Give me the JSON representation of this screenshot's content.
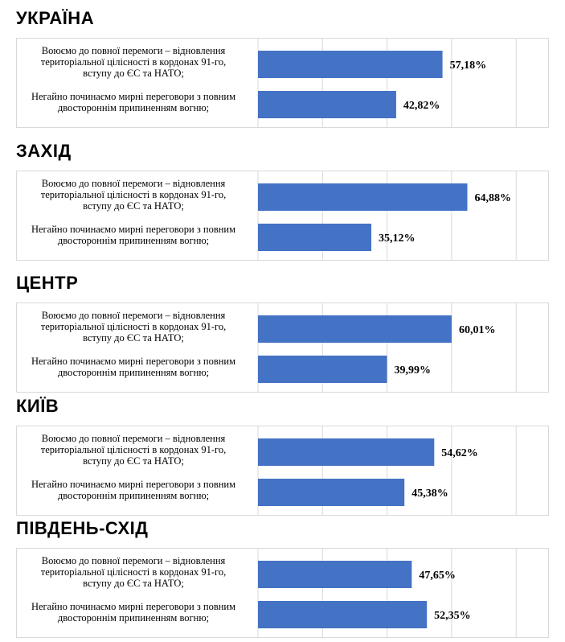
{
  "colors": {
    "bar": "#4472c4",
    "grid": "#d9d9d9",
    "border": "#d9d9d9"
  },
  "chart_data": [
    {
      "type": "bar",
      "orientation": "horizontal",
      "title": "УКРАЇНА",
      "categories": [
        "Воюємо до повної перемоги – відновлення територіальної цілісності в кордонах 91-го, вступу до ЄС та НАТО;",
        "Негайно починаємо мирні переговори з повним двостороннім припиненням вогню;"
      ],
      "category_lines": [
        [
          "Воюємо до повної перемоги – відновлення",
          "територіальної цілісності в кордонах 91-го,",
          "вступу до ЄС та НАТО;"
        ],
        [
          "Негайно починаємо мирні переговори з повним",
          "двостороннім припиненням вогню;"
        ]
      ],
      "values": [
        57.18,
        42.82
      ],
      "data_labels": [
        "57,18%",
        "42,82%"
      ],
      "xlim": [
        0,
        80
      ]
    },
    {
      "type": "bar",
      "orientation": "horizontal",
      "title": "ЗАХІД",
      "categories": [
        "Воюємо до повної перемоги – відновлення територіальної цілісності в кордонах 91-го, вступу до ЄС та НАТО;",
        "Негайно починаємо мирні переговори з повним двостороннім припиненням вогню;"
      ],
      "category_lines": [
        [
          "Воюємо до повної перемоги – відновлення",
          "територіальної цілісності в кордонах 91-го,",
          "вступу до ЄС та НАТО;"
        ],
        [
          "Негайно починаємо мирні переговори з повним",
          "двостороннім припиненням вогню;"
        ]
      ],
      "values": [
        64.88,
        35.12
      ],
      "data_labels": [
        "64,88%",
        "35,12%"
      ],
      "xlim": [
        0,
        80
      ]
    },
    {
      "type": "bar",
      "orientation": "horizontal",
      "title": "ЦЕНТР",
      "categories": [
        "Воюємо до повної перемоги – відновлення територіальної цілісності в кордонах 91-го, вступу до ЄС та НАТО;",
        "Негайно починаємо мирні переговори з повним двостороннім припиненням вогню;"
      ],
      "category_lines": [
        [
          "Воюємо до повної перемоги – відновлення",
          "територіальної цілісності в кордонах 91-го,",
          "вступу до ЄС та НАТО;"
        ],
        [
          "Негайно починаємо мирні переговори з повним",
          "двостороннім припиненням вогню;"
        ]
      ],
      "values": [
        60.01,
        39.99
      ],
      "data_labels": [
        "60,01%",
        "39,99%"
      ],
      "xlim": [
        0,
        80
      ]
    },
    {
      "type": "bar",
      "orientation": "horizontal",
      "title": "КИЇВ",
      "categories": [
        "Воюємо до повної перемоги – відновлення територіальної цілісності в кордонах 91-го, вступу до ЄС та НАТО;",
        "Негайно починаємо мирні переговори з повним двостороннім припиненням вогню;"
      ],
      "category_lines": [
        [
          "Воюємо до повної перемоги – відновлення",
          "територіальної цілісності в кордонах 91-го,",
          "вступу до ЄС та НАТО;"
        ],
        [
          "Негайно починаємо мирні переговори з повним",
          "двостороннім припиненням вогню;"
        ]
      ],
      "values": [
        54.62,
        45.38
      ],
      "data_labels": [
        "54,62%",
        "45,38%"
      ],
      "xlim": [
        0,
        80
      ]
    },
    {
      "type": "bar",
      "orientation": "horizontal",
      "title": "ПІВДЕНЬ-СХІД",
      "categories": [
        "Воюємо до повної перемоги – відновлення територіальної цілісності в кордонах 91-го, вступу до ЄС та НАТО;",
        "Негайно починаємо мирні переговори з повним двостороннім припиненням вогню;"
      ],
      "category_lines": [
        [
          "Воюємо до повної перемоги – відновлення",
          "територіальної цілісності в кордонах 91-го,",
          "вступу до ЄС та НАТО;"
        ],
        [
          "Негайно починаємо мирні переговори з повним",
          "двостороннім припиненням вогню;"
        ]
      ],
      "values": [
        47.65,
        52.35
      ],
      "data_labels": [
        "47,65%",
        "52,35%"
      ],
      "xlim": [
        0,
        80
      ]
    }
  ]
}
